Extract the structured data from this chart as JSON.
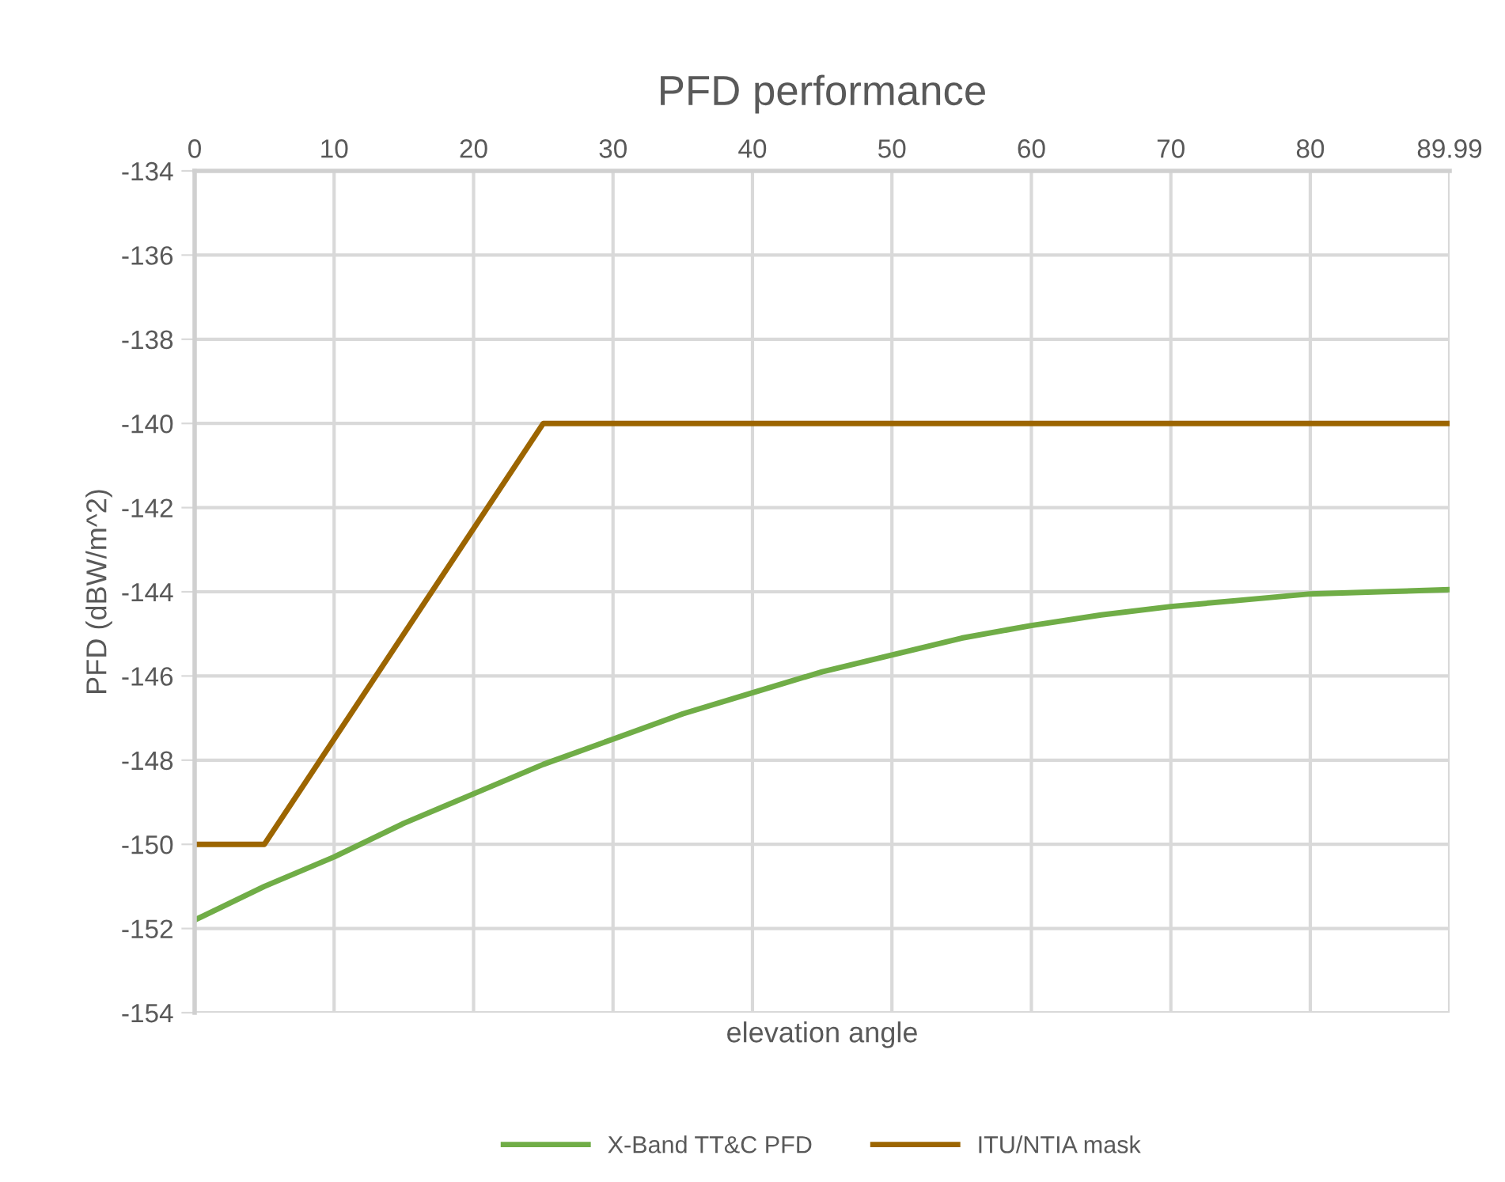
{
  "chart_data": {
    "type": "line",
    "title": "PFD performance",
    "xlabel": "elevation angle",
    "ylabel": "PFD (dBW/m^2)",
    "xlim": [
      0,
      89.99
    ],
    "xticks": [
      0,
      10,
      20,
      30,
      40,
      50,
      60,
      70,
      80,
      89.99
    ],
    "ylim": [
      -154,
      -134
    ],
    "yticks": [
      -154,
      -152,
      -150,
      -148,
      -146,
      -144,
      -142,
      -140,
      -138,
      -136,
      -134
    ],
    "grid": true,
    "legend": "bottom",
    "marker": "none",
    "line_style": "solid",
    "series": [
      {
        "name": "X-Band TT&C PFD",
        "color": "#70ad47",
        "x": [
          0,
          5,
          10,
          15,
          20,
          25,
          30,
          35,
          40,
          45,
          50,
          55,
          60,
          65,
          70,
          75,
          80,
          85,
          89.99
        ],
        "values": [
          -151.8,
          -151.0,
          -150.3,
          -149.5,
          -148.8,
          -148.1,
          -147.5,
          -146.9,
          -146.4,
          -145.9,
          -145.5,
          -145.1,
          -144.8,
          -144.55,
          -144.35,
          -144.2,
          -144.05,
          -144.0,
          -143.95
        ]
      },
      {
        "name": "ITU/NTIA mask",
        "color": "#9c6500",
        "x": [
          0,
          5,
          25,
          89.99
        ],
        "values": [
          -150,
          -150,
          -140,
          -140
        ]
      }
    ]
  }
}
